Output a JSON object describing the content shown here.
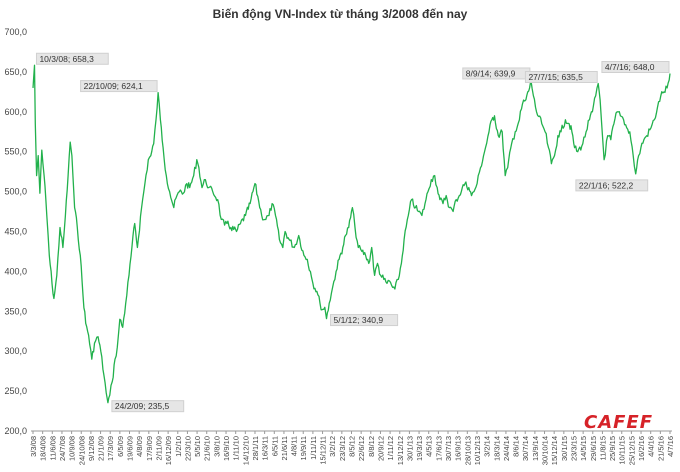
{
  "chart_data": {
    "type": "line",
    "title": "Biến động VN-Index từ tháng 3/2008 đến nay",
    "xlabel": "",
    "ylabel": "",
    "ylim": [
      200,
      700
    ],
    "y_ticks": [
      "200,0",
      "250,0",
      "300,0",
      "350,0",
      "400,0",
      "450,0",
      "500,0",
      "550,0",
      "600,0",
      "650,0",
      "700,0"
    ],
    "x_tick_labels": [
      "3/3/08",
      "18/4/08",
      "11/6/08",
      "24/7/08",
      "10/9/08",
      "24/10/08",
      "9/12/08",
      "21/1/09",
      "17/3/09",
      "6/5/09",
      "19/6/09",
      "4/8/09",
      "17/9/09",
      "2/11/09",
      "16/12/09",
      "1/2/10",
      "22/3/10",
      "5/5/10",
      "21/6/10",
      "3/8/10",
      "16/9/10",
      "1/11/10",
      "14/12/10",
      "28/1/11",
      "16/3/11",
      "6/5/11",
      "21/6/11",
      "4/8/11",
      "19/9/11",
      "1/11/11",
      "15/12/11",
      "3/2/12",
      "23/3/12",
      "8/5/12",
      "22/6/12",
      "8/8/12",
      "20/9/12",
      "1/11/12",
      "13/12/12",
      "30/1/13",
      "19/3/13",
      "4/5/13",
      "17/6/13",
      "30/7/13",
      "16/9/13",
      "28/10/13",
      "10/12/13",
      "3/2/14",
      "18/3/14",
      "24/4/14",
      "8/6/14",
      "30/7/14",
      "13/9/14",
      "30/10/14",
      "15/12/14",
      "30/1/15",
      "23/3/15",
      "14/5/15",
      "29/6/15",
      "11/8/15",
      "25/9/15",
      "10/11/15",
      "25/12/15",
      "16/2/16",
      "4/4/16",
      "21/5/16",
      "4/7/16"
    ],
    "grid": false,
    "line_color": "#22b14c",
    "series": [
      {
        "points": [
          [
            "2008-03-03",
            630
          ],
          [
            "2008-03-10",
            658.3
          ],
          [
            "2008-03-14",
            585
          ],
          [
            "2008-03-20",
            520
          ],
          [
            "2008-03-28",
            545
          ],
          [
            "2008-04-05",
            498
          ],
          [
            "2008-04-14",
            552
          ],
          [
            "2008-04-25",
            520
          ],
          [
            "2008-05-08",
            470
          ],
          [
            "2008-05-20",
            420
          ],
          [
            "2008-06-02",
            385
          ],
          [
            "2008-06-11",
            366
          ],
          [
            "2008-06-25",
            395
          ],
          [
            "2008-07-10",
            455
          ],
          [
            "2008-07-24",
            430
          ],
          [
            "2008-08-05",
            470
          ],
          [
            "2008-08-18",
            520
          ],
          [
            "2008-08-28",
            562
          ],
          [
            "2008-09-05",
            545
          ],
          [
            "2008-09-18",
            480
          ],
          [
            "2008-10-01",
            455
          ],
          [
            "2008-10-15",
            420
          ],
          [
            "2008-10-28",
            370
          ],
          [
            "2008-11-10",
            335
          ],
          [
            "2008-11-24",
            320
          ],
          [
            "2008-12-09",
            290
          ],
          [
            "2008-12-22",
            310
          ],
          [
            "2009-01-08",
            318
          ],
          [
            "2009-01-21",
            300
          ],
          [
            "2009-02-05",
            270
          ],
          [
            "2009-02-16",
            248
          ],
          [
            "2009-02-24",
            235.5
          ],
          [
            "2009-03-05",
            245
          ],
          [
            "2009-03-17",
            262
          ],
          [
            "2009-03-30",
            290
          ],
          [
            "2009-04-10",
            305
          ],
          [
            "2009-04-22",
            340
          ],
          [
            "2009-05-06",
            330
          ],
          [
            "2009-05-20",
            360
          ],
          [
            "2009-06-05",
            395
          ],
          [
            "2009-06-19",
            430
          ],
          [
            "2009-07-02",
            460
          ],
          [
            "2009-07-15",
            430
          ],
          [
            "2009-08-04",
            480
          ],
          [
            "2009-08-20",
            510
          ],
          [
            "2009-09-05",
            540
          ],
          [
            "2009-09-17",
            545
          ],
          [
            "2009-10-01",
            560
          ],
          [
            "2009-10-12",
            590
          ],
          [
            "2009-10-22",
            624.1
          ],
          [
            "2009-11-02",
            590
          ],
          [
            "2009-11-15",
            555
          ],
          [
            "2009-11-30",
            520
          ],
          [
            "2009-12-16",
            500
          ],
          [
            "2010-01-05",
            480
          ],
          [
            "2010-01-20",
            495
          ],
          [
            "2010-02-01",
            500
          ],
          [
            "2010-02-20",
            498
          ],
          [
            "2010-03-08",
            510
          ],
          [
            "2010-03-22",
            505
          ],
          [
            "2010-04-10",
            520
          ],
          [
            "2010-04-25",
            540
          ],
          [
            "2010-05-05",
            530
          ],
          [
            "2010-05-20",
            505
          ],
          [
            "2010-06-05",
            515
          ],
          [
            "2010-06-21",
            505
          ],
          [
            "2010-07-10",
            500
          ],
          [
            "2010-08-03",
            490
          ],
          [
            "2010-08-20",
            465
          ],
          [
            "2010-09-05",
            458
          ],
          [
            "2010-09-16",
            460
          ],
          [
            "2010-10-05",
            455
          ],
          [
            "2010-11-01",
            450
          ],
          [
            "2010-11-20",
            460
          ],
          [
            "2010-12-14",
            470
          ],
          [
            "2011-01-05",
            485
          ],
          [
            "2011-01-28",
            510
          ],
          [
            "2011-02-15",
            488
          ],
          [
            "2011-03-01",
            470
          ],
          [
            "2011-03-16",
            465
          ],
          [
            "2011-04-05",
            470
          ],
          [
            "2011-04-20",
            485
          ],
          [
            "2011-05-06",
            470
          ],
          [
            "2011-05-25",
            440
          ],
          [
            "2011-06-10",
            430
          ],
          [
            "2011-06-21",
            450
          ],
          [
            "2011-07-10",
            440
          ],
          [
            "2011-08-04",
            430
          ],
          [
            "2011-08-25",
            445
          ],
          [
            "2011-09-19",
            420
          ],
          [
            "2011-10-05",
            415
          ],
          [
            "2011-10-20",
            400
          ],
          [
            "2011-11-01",
            385
          ],
          [
            "2011-11-20",
            375
          ],
          [
            "2011-12-05",
            360
          ],
          [
            "2011-12-15",
            352
          ],
          [
            "2011-12-28",
            355
          ],
          [
            "2012-01-05",
            340.9
          ],
          [
            "2012-01-18",
            360
          ],
          [
            "2012-02-03",
            380
          ],
          [
            "2012-02-20",
            400
          ],
          [
            "2012-03-05",
            415
          ],
          [
            "2012-03-23",
            430
          ],
          [
            "2012-04-05",
            445
          ],
          [
            "2012-04-20",
            455
          ],
          [
            "2012-05-08",
            480
          ],
          [
            "2012-05-20",
            455
          ],
          [
            "2012-06-05",
            430
          ],
          [
            "2012-06-22",
            425
          ],
          [
            "2012-07-10",
            420
          ],
          [
            "2012-07-25",
            410
          ],
          [
            "2012-08-08",
            430
          ],
          [
            "2012-08-22",
            395
          ],
          [
            "2012-09-05",
            410
          ],
          [
            "2012-09-20",
            395
          ],
          [
            "2012-10-05",
            390
          ],
          [
            "2012-10-20",
            385
          ],
          [
            "2012-11-01",
            388
          ],
          [
            "2012-11-16",
            380
          ],
          [
            "2012-11-27",
            378
          ],
          [
            "2012-12-13",
            390
          ],
          [
            "2012-12-28",
            410
          ],
          [
            "2013-01-10",
            440
          ],
          [
            "2013-01-30",
            470
          ],
          [
            "2013-02-15",
            490
          ],
          [
            "2013-03-05",
            480
          ],
          [
            "2013-03-19",
            475
          ],
          [
            "2013-04-05",
            470
          ],
          [
            "2013-04-20",
            485
          ],
          [
            "2013-05-04",
            500
          ],
          [
            "2013-05-20",
            515
          ],
          [
            "2013-06-05",
            520
          ],
          [
            "2013-06-17",
            505
          ],
          [
            "2013-06-30",
            490
          ],
          [
            "2013-07-15",
            485
          ],
          [
            "2013-07-30",
            495
          ],
          [
            "2013-08-15",
            480
          ],
          [
            "2013-09-01",
            475
          ],
          [
            "2013-09-16",
            490
          ],
          [
            "2013-10-01",
            495
          ],
          [
            "2013-10-15",
            505
          ],
          [
            "2013-10-28",
            510
          ],
          [
            "2013-11-15",
            505
          ],
          [
            "2013-11-28",
            495
          ],
          [
            "2013-12-10",
            500
          ],
          [
            "2013-12-25",
            510
          ],
          [
            "2014-01-10",
            530
          ],
          [
            "2014-02-03",
            555
          ],
          [
            "2014-02-20",
            575
          ],
          [
            "2014-03-05",
            590
          ],
          [
            "2014-03-18",
            595
          ],
          [
            "2014-04-05",
            570
          ],
          [
            "2014-04-24",
            575
          ],
          [
            "2014-05-08",
            520
          ],
          [
            "2014-05-20",
            530
          ],
          [
            "2014-06-08",
            560
          ],
          [
            "2014-06-25",
            575
          ],
          [
            "2014-07-15",
            590
          ],
          [
            "2014-07-30",
            610
          ],
          [
            "2014-08-15",
            615
          ],
          [
            "2014-09-02",
            630
          ],
          [
            "2014-09-08",
            639.9
          ],
          [
            "2014-09-20",
            620
          ],
          [
            "2014-10-05",
            600
          ],
          [
            "2014-10-30",
            585
          ],
          [
            "2014-11-15",
            575
          ],
          [
            "2014-12-01",
            555
          ],
          [
            "2014-12-15",
            535
          ],
          [
            "2014-12-30",
            545
          ],
          [
            "2015-01-15",
            570
          ],
          [
            "2015-01-30",
            575
          ],
          [
            "2015-02-20",
            590
          ],
          [
            "2015-03-10",
            585
          ],
          [
            "2015-03-23",
            575
          ],
          [
            "2015-04-05",
            555
          ],
          [
            "2015-04-20",
            550
          ],
          [
            "2015-05-14",
            560
          ],
          [
            "2015-05-30",
            575
          ],
          [
            "2015-06-15",
            590
          ],
          [
            "2015-06-29",
            600
          ],
          [
            "2015-07-15",
            620
          ],
          [
            "2015-07-27",
            635.5
          ],
          [
            "2015-08-05",
            615
          ],
          [
            "2015-08-11",
            590
          ],
          [
            "2015-08-24",
            540
          ],
          [
            "2015-09-10",
            570
          ],
          [
            "2015-09-25",
            565
          ],
          [
            "2015-10-10",
            585
          ],
          [
            "2015-10-25",
            600
          ],
          [
            "2015-11-10",
            595
          ],
          [
            "2015-11-25",
            590
          ],
          [
            "2015-12-10",
            580
          ],
          [
            "2015-12-25",
            575
          ],
          [
            "2016-01-10",
            545
          ],
          [
            "2016-01-22",
            522.2
          ],
          [
            "2016-02-05",
            545
          ],
          [
            "2016-02-16",
            555
          ],
          [
            "2016-03-01",
            565
          ],
          [
            "2016-03-15",
            570
          ],
          [
            "2016-04-04",
            580
          ],
          [
            "2016-04-20",
            590
          ],
          [
            "2016-05-05",
            605
          ],
          [
            "2016-05-21",
            620
          ],
          [
            "2016-06-05",
            625
          ],
          [
            "2016-06-20",
            630
          ],
          [
            "2016-06-30",
            640
          ],
          [
            "2016-07-04",
            648.0
          ]
        ]
      }
    ],
    "annotations": [
      {
        "date": "2008-03-10",
        "text": "10/3/08; 658,3",
        "position": "right"
      },
      {
        "date": "2009-10-22",
        "text": "22/10/09; 624,1",
        "position": "left"
      },
      {
        "date": "2009-02-24",
        "text": "24/2/09; 235,5",
        "position": "right"
      },
      {
        "date": "2012-01-05",
        "text": "5/1/12; 340,9",
        "position": "right"
      },
      {
        "date": "2014-09-08",
        "text": "8/9/14; 639,9",
        "position": "left"
      },
      {
        "date": "2015-07-27",
        "text": "27/7/15; 635,5",
        "position": "left"
      },
      {
        "date": "2016-01-22",
        "text": "22/1/16; 522,2",
        "position": "below-left"
      },
      {
        "date": "2016-07-04",
        "text": "4/7/16; 648,0",
        "position": "left"
      }
    ]
  },
  "brand": {
    "logo_text": "CAFEF"
  }
}
